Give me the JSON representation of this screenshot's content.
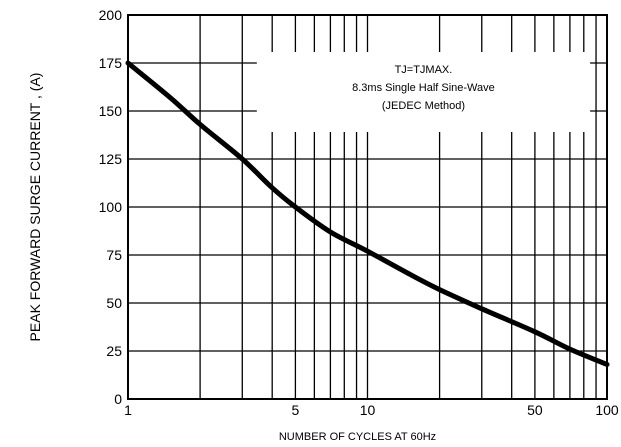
{
  "chart_data": {
    "type": "line",
    "title": "",
    "xlabel": "NUMBER OF CYCLES AT 60Hz",
    "ylabel": "PEAK  FORWARD SURGE CURRENT , (A)",
    "xscale": "log",
    "xlim": [
      1,
      100
    ],
    "ylim": [
      0,
      200
    ],
    "grid": true,
    "x_ticks": [
      1,
      5,
      10,
      50,
      100
    ],
    "x_tick_labels": [
      "1",
      "5",
      "10",
      "50",
      "100"
    ],
    "y_ticks": [
      0,
      25,
      50,
      75,
      100,
      125,
      150,
      175,
      200
    ],
    "y_tick_labels": [
      "0",
      "25",
      "50",
      "75",
      "100",
      "125",
      "150",
      "175",
      "200"
    ],
    "series": [
      {
        "x": [
          1,
          1.5,
          2,
          3,
          4,
          5,
          7,
          10,
          15,
          20,
          30,
          50,
          70,
          100
        ],
        "y": [
          175,
          157,
          143,
          125,
          110,
          100,
          87,
          77,
          65,
          57,
          47,
          35,
          26,
          18
        ]
      }
    ],
    "annotation": {
      "lines": [
        "TJ=TJMAX.",
        "8.3ms Single Half Sine-Wave",
        "(JEDEC Method)"
      ]
    }
  }
}
